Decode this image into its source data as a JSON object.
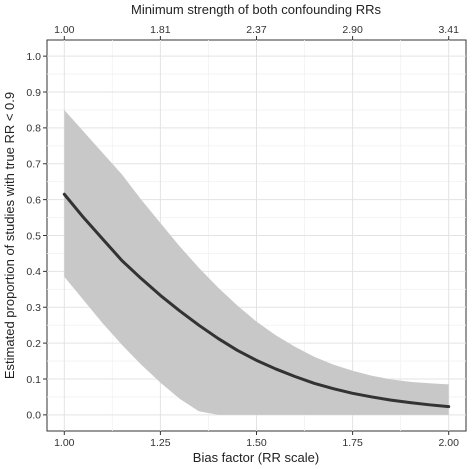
{
  "chart_data": {
    "type": "line",
    "title": "",
    "xlabel": "Bias factor (RR scale)",
    "ylabel": "Estimated proportion of studies with true RR < 0.9",
    "x2label": "Minimum strength of both confounding RRs",
    "xlim": [
      1.0,
      2.0
    ],
    "ylim": [
      0.0,
      1.0
    ],
    "grid": true,
    "x_ticks": [
      1.0,
      1.25,
      1.5,
      1.75,
      2.0
    ],
    "x_tick_labels": [
      "1.00",
      "1.25",
      "1.50",
      "1.75",
      "2.00"
    ],
    "x2_ticks": [
      1.0,
      1.25,
      1.5,
      1.75,
      2.0
    ],
    "x2_tick_labels": [
      "1.00",
      "1.81",
      "2.37",
      "2.90",
      "3.41"
    ],
    "y_ticks": [
      0.0,
      0.1,
      0.2,
      0.3,
      0.4,
      0.5,
      0.6,
      0.7,
      0.8,
      0.9,
      1.0
    ],
    "y_tick_labels": [
      "0.0",
      "0.1",
      "0.2",
      "0.3",
      "0.4",
      "0.5",
      "0.6",
      "0.7",
      "0.8",
      "0.9",
      "1.0"
    ],
    "series": [
      {
        "x": [
          1.0,
          1.05,
          1.1,
          1.15,
          1.2,
          1.25,
          1.3,
          1.35,
          1.4,
          1.45,
          1.5,
          1.55,
          1.6,
          1.65,
          1.7,
          1.75,
          1.8,
          1.85,
          1.9,
          1.95,
          2.0
        ],
        "y": [
          0.615,
          0.55,
          0.49,
          0.43,
          0.38,
          0.333,
          0.29,
          0.25,
          0.213,
          0.18,
          0.152,
          0.128,
          0.107,
          0.088,
          0.073,
          0.06,
          0.05,
          0.041,
          0.034,
          0.028,
          0.023
        ],
        "lower": [
          0.385,
          0.32,
          0.255,
          0.195,
          0.14,
          0.09,
          0.045,
          0.01,
          0.0,
          0.0,
          0.0,
          0.0,
          0.0,
          0.0,
          0.0,
          0.0,
          0.0,
          0.0,
          0.0,
          0.0,
          0.0
        ],
        "upper": [
          0.85,
          0.79,
          0.73,
          0.67,
          0.6,
          0.535,
          0.47,
          0.41,
          0.355,
          0.305,
          0.26,
          0.222,
          0.19,
          0.162,
          0.14,
          0.123,
          0.109,
          0.099,
          0.092,
          0.088,
          0.085
        ],
        "line_color": "#333333",
        "band_color": "#c8c8c8"
      }
    ]
  }
}
